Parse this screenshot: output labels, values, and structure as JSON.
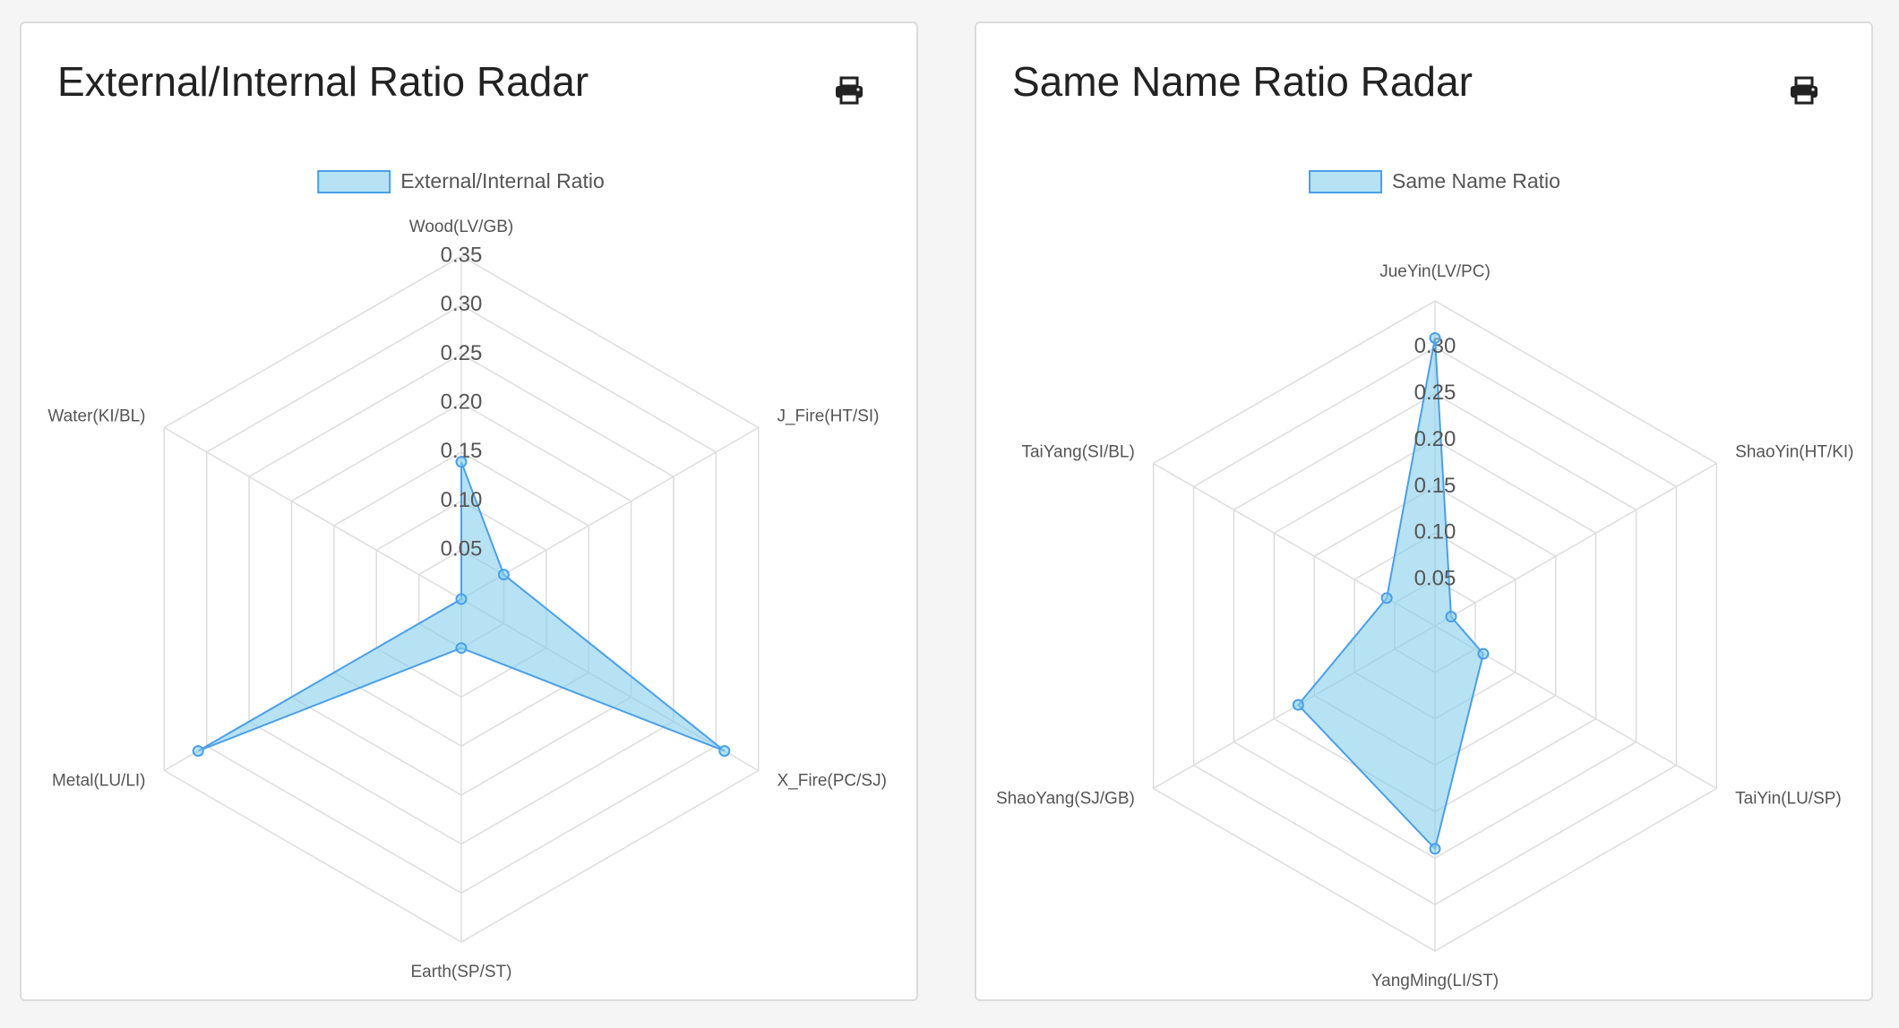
{
  "colors": {
    "fill": "rgba(135,206,235,0.6)",
    "stroke": "#4a9fe8",
    "grid": "#dddddd",
    "text": "#555555"
  },
  "chart_data": [
    {
      "type": "radar",
      "title": "External/Internal Ratio Radar",
      "legend": "External/Internal Ratio",
      "print_icon": "printer-icon",
      "axes": [
        "Wood(LV/GB)",
        "J_Fire(HT/SI)",
        "X_Fire(PC/SJ)",
        "Earth(SP/ST)",
        "Metal(LU/LI)",
        "Water(KI/BL)"
      ],
      "values": [
        0.14,
        0.05,
        0.31,
        0.05,
        0.31,
        0.0
      ],
      "rmax": 0.35,
      "ticks": [
        "0.05",
        "0.10",
        "0.15",
        "0.20",
        "0.25",
        "0.30",
        "0.35"
      ],
      "grid": true,
      "legend_position": "top"
    },
    {
      "type": "radar",
      "title": "Same Name Ratio Radar",
      "legend": "Same Name Ratio",
      "print_icon": "printer-icon",
      "axes": [
        "JueYin(LV/PC)",
        "ShaoYin(HT/KI)",
        "TaiYin(LU/SP)",
        "YangMing(LI/ST)",
        "ShaoYang(SJ/GB)",
        "TaiYang(SI/BL)"
      ],
      "values": [
        0.31,
        0.02,
        0.06,
        0.24,
        0.17,
        0.06
      ],
      "rmax": 0.35,
      "ticks": [
        "0.05",
        "0.10",
        "0.15",
        "0.20",
        "0.25",
        "0.30"
      ],
      "grid": true,
      "legend_position": "top"
    }
  ]
}
